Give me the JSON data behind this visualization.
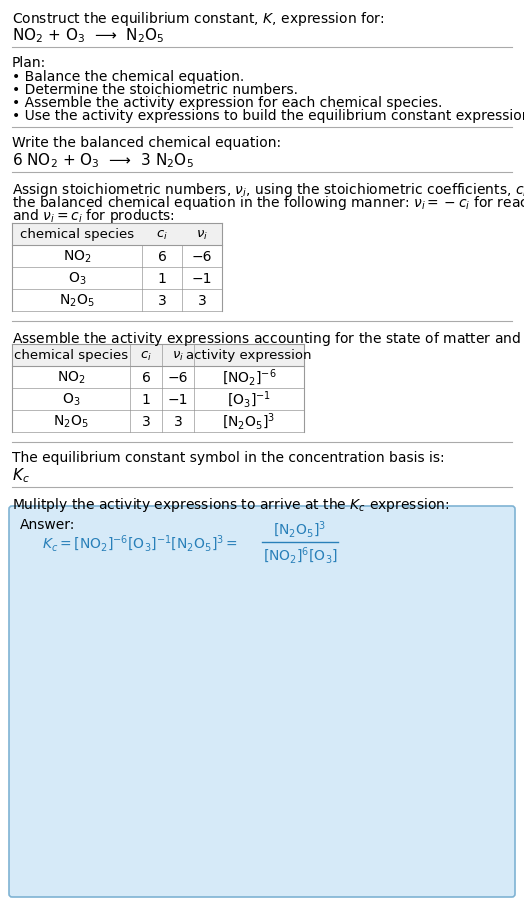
{
  "title_line1": "Construct the equilibrium constant, $K$, expression for:",
  "title_line2": "NO$_2$ + O$_3$  ⟶  N$_2$O$_5$",
  "plan_header": "Plan:",
  "plan_bullets": [
    "• Balance the chemical equation.",
    "• Determine the stoichiometric numbers.",
    "• Assemble the activity expression for each chemical species.",
    "• Use the activity expressions to build the equilibrium constant expression."
  ],
  "balanced_header": "Write the balanced chemical equation:",
  "balanced_eq": "6 NO$_2$ + O$_3$  ⟶  3 N$_2$O$_5$",
  "stoich_intro": "Assign stoichiometric numbers, $\\nu_i$, using the stoichiometric coefficients, $c_i$, from\nthe balanced chemical equation in the following manner: $\\nu_i = -c_i$ for reactants\nand $\\nu_i = c_i$ for products:",
  "table1_headers": [
    "chemical species",
    "$c_i$",
    "$\\nu_i$"
  ],
  "table1_rows": [
    [
      "NO$_2$",
      "6",
      "−6"
    ],
    [
      "O$_3$",
      "1",
      "−1"
    ],
    [
      "N$_2$O$_5$",
      "3",
      "3"
    ]
  ],
  "activity_intro": "Assemble the activity expressions accounting for the state of matter and $\\nu_i$:",
  "table2_headers": [
    "chemical species",
    "$c_i$",
    "$\\nu_i$",
    "activity expression"
  ],
  "table2_rows": [
    [
      "NO$_2$",
      "6",
      "−6",
      "[NO$_2$]$^{-6}$"
    ],
    [
      "O$_3$",
      "1",
      "−1",
      "[O$_3$]$^{-1}$"
    ],
    [
      "N$_2$O$_5$",
      "3",
      "3",
      "[N$_2$O$_5$]$^3$"
    ]
  ],
  "kc_header": "The equilibrium constant symbol in the concentration basis is:",
  "kc_symbol": "$K_c$",
  "multiply_header": "Mulitply the activity expressions to arrive at the $K_c$ expression:",
  "answer_label": "Answer:",
  "answer_box_color": "#d6eaf8",
  "answer_box_border": "#7fb3d3",
  "text_color": "#000000",
  "table_header_bg": "#e8e8e8",
  "separator_color": "#cccccc",
  "font_size": 10,
  "fig_width": 5.24,
  "fig_height": 9.03
}
